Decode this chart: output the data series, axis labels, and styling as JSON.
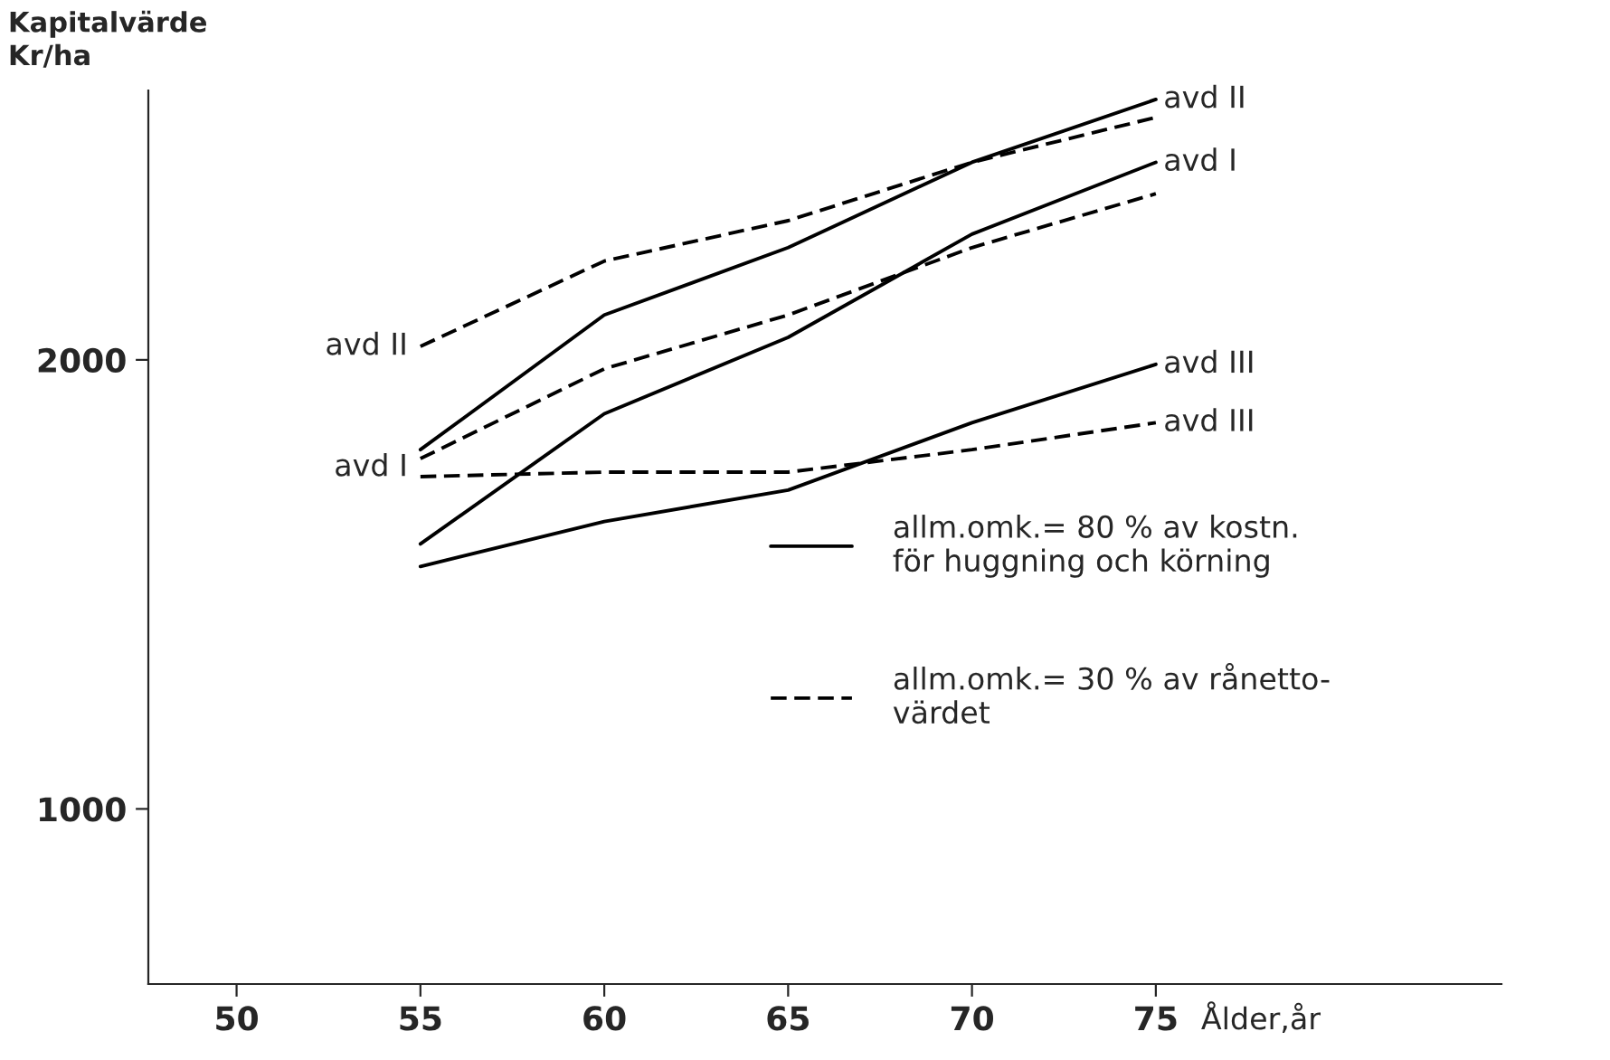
{
  "chart_data": {
    "type": "line",
    "ylabel": "Kapitalvärde\nKr/ha",
    "xlabel": "Ålder,år",
    "x": [
      55,
      60,
      65,
      70,
      75
    ],
    "series": [
      {
        "name": "avd II",
        "color": "#000000",
        "line_style": "solid",
        "values": [
          1800,
          2100,
          2250,
          2440,
          2580
        ]
      },
      {
        "color": "#000000",
        "line_style": "dashed",
        "values": [
          2030,
          2220,
          2310,
          2440,
          2540
        ]
      },
      {
        "name": "avd I",
        "color": "#000000",
        "line_style": "solid",
        "values": [
          1590,
          1880,
          2050,
          2280,
          2440
        ]
      },
      {
        "color": "#000000",
        "line_style": "dashed",
        "values": [
          1780,
          1980,
          2100,
          2250,
          2370
        ]
      },
      {
        "name": "avd III",
        "color": "#000000",
        "line_style": "solid",
        "values": [
          1540,
          1640,
          1710,
          1860,
          1990
        ]
      },
      {
        "name": "avd III",
        "color": "#000000",
        "line_style": "dashed",
        "values": [
          1740,
          1750,
          1750,
          1800,
          1860
        ]
      }
    ],
    "annotations": [
      {
        "text": "avd II",
        "x": 55,
        "y": 2030
      },
      {
        "text": "avd I",
        "x": 55,
        "y": 1760
      },
      "allm.omk.= 80 % av kostn.\nför huggning och körning",
      "allm.omk.= 30 % av rånetto-\nvärdet"
    ],
    "xlim": [
      47.6,
      84.4
    ],
    "ylim": [
      610,
      2600
    ],
    "xticks": [
      50,
      55,
      60,
      65,
      70,
      75
    ],
    "yticks": [
      1000,
      2000
    ],
    "grid": false,
    "legend": false,
    "marker": "none"
  }
}
